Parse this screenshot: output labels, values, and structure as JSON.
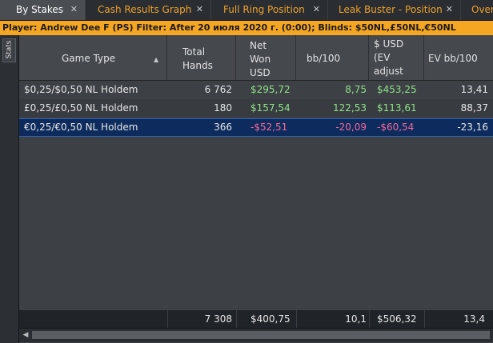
{
  "tabs": [
    {
      "label": "By Stakes",
      "close": "✕",
      "active": true
    },
    {
      "label": "Cash Results Graph",
      "close": "✕"
    },
    {
      "label": "Full Ring Position",
      "close": "✕"
    },
    {
      "label": "Leak Buster - Position",
      "close": "✕"
    },
    {
      "label": "Overa",
      "close": ""
    }
  ],
  "filter_bar": {
    "text": "Player: Andrew Dee F (PS)   Filter: After 20 июля 2020 г. (0:00); Blinds: $50NL,£50NL,€50NL"
  },
  "side_tab": {
    "label": "Stats"
  },
  "columns": [
    {
      "label": "Game Type"
    },
    {
      "label_lines": [
        "Total",
        "Hands"
      ]
    },
    {
      "label_lines": [
        "Net",
        "Won",
        "USD"
      ]
    },
    {
      "label": "bb/100"
    },
    {
      "label_lines": [
        "$ USD",
        "(EV",
        "adjust"
      ]
    },
    {
      "label": "EV bb/100"
    }
  ],
  "rows": [
    {
      "game_type": "$0,25/$0,50 NL Holdem",
      "hands": "6 762",
      "net_won": "$295,72",
      "bb100": "8,75",
      "ev_usd": "$453,25",
      "ev_bb100": "13,41"
    },
    {
      "game_type": "£0,25/£0,50 NL Holdem",
      "hands": "180",
      "net_won": "$157,54",
      "bb100": "122,53",
      "ev_usd": "$113,61",
      "ev_bb100": "88,37"
    },
    {
      "game_type": "€0,25/€0,50 NL Holdem",
      "hands": "366",
      "net_won": "-$52,51",
      "bb100": "-20,09",
      "ev_usd": "-$60,54",
      "ev_bb100": "-23,16",
      "selected": true
    }
  ],
  "totals": {
    "hands": "7 308",
    "net_won": "$400,75",
    "bb100": "10,1",
    "ev_usd": "$506,32",
    "ev_bb100": "13,4"
  },
  "colors": {
    "accent_tab_text": "#f0a22a",
    "filter_bar": "#f5a623",
    "positive": "#8fe388",
    "negative": "#f06a9a",
    "selected_row": "#0d2b5c"
  },
  "icons": {
    "sort": "sort-asc-icon",
    "scroll_left": "scroll-left-icon"
  }
}
